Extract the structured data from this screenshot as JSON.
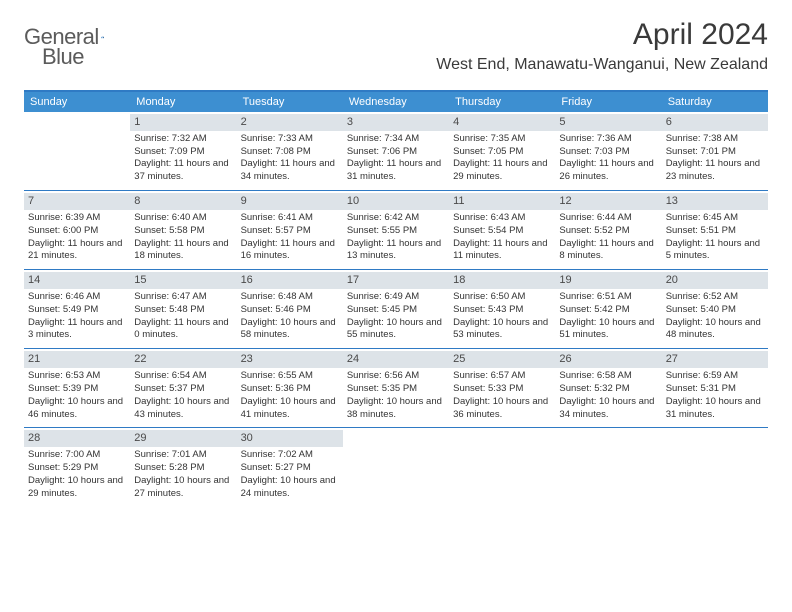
{
  "brand": {
    "name_gray": "General",
    "name_blue": "Blue"
  },
  "title": "April 2024",
  "location": "West End, Manawatu-Wanganui, New Zealand",
  "colors": {
    "accent": "#2f7ac4",
    "header_bg": "#3d8fd1",
    "daynum_bg": "#dde3e8",
    "text": "#333333",
    "title_text": "#3a3a3a",
    "logo_gray": "#5b5b5b"
  },
  "typography": {
    "title_fontsize_pt": 22,
    "location_fontsize_pt": 12,
    "header_fontsize_pt": 8,
    "body_fontsize_pt": 7,
    "daynum_fontsize_pt": 8
  },
  "day_names": [
    "Sunday",
    "Monday",
    "Tuesday",
    "Wednesday",
    "Thursday",
    "Friday",
    "Saturday"
  ],
  "weeks": [
    [
      {
        "n": "",
        "sr": "",
        "ss": "",
        "dl": ""
      },
      {
        "n": "1",
        "sr": "Sunrise: 7:32 AM",
        "ss": "Sunset: 7:09 PM",
        "dl": "Daylight: 11 hours and 37 minutes."
      },
      {
        "n": "2",
        "sr": "Sunrise: 7:33 AM",
        "ss": "Sunset: 7:08 PM",
        "dl": "Daylight: 11 hours and 34 minutes."
      },
      {
        "n": "3",
        "sr": "Sunrise: 7:34 AM",
        "ss": "Sunset: 7:06 PM",
        "dl": "Daylight: 11 hours and 31 minutes."
      },
      {
        "n": "4",
        "sr": "Sunrise: 7:35 AM",
        "ss": "Sunset: 7:05 PM",
        "dl": "Daylight: 11 hours and 29 minutes."
      },
      {
        "n": "5",
        "sr": "Sunrise: 7:36 AM",
        "ss": "Sunset: 7:03 PM",
        "dl": "Daylight: 11 hours and 26 minutes."
      },
      {
        "n": "6",
        "sr": "Sunrise: 7:38 AM",
        "ss": "Sunset: 7:01 PM",
        "dl": "Daylight: 11 hours and 23 minutes."
      }
    ],
    [
      {
        "n": "7",
        "sr": "Sunrise: 6:39 AM",
        "ss": "Sunset: 6:00 PM",
        "dl": "Daylight: 11 hours and 21 minutes."
      },
      {
        "n": "8",
        "sr": "Sunrise: 6:40 AM",
        "ss": "Sunset: 5:58 PM",
        "dl": "Daylight: 11 hours and 18 minutes."
      },
      {
        "n": "9",
        "sr": "Sunrise: 6:41 AM",
        "ss": "Sunset: 5:57 PM",
        "dl": "Daylight: 11 hours and 16 minutes."
      },
      {
        "n": "10",
        "sr": "Sunrise: 6:42 AM",
        "ss": "Sunset: 5:55 PM",
        "dl": "Daylight: 11 hours and 13 minutes."
      },
      {
        "n": "11",
        "sr": "Sunrise: 6:43 AM",
        "ss": "Sunset: 5:54 PM",
        "dl": "Daylight: 11 hours and 11 minutes."
      },
      {
        "n": "12",
        "sr": "Sunrise: 6:44 AM",
        "ss": "Sunset: 5:52 PM",
        "dl": "Daylight: 11 hours and 8 minutes."
      },
      {
        "n": "13",
        "sr": "Sunrise: 6:45 AM",
        "ss": "Sunset: 5:51 PM",
        "dl": "Daylight: 11 hours and 5 minutes."
      }
    ],
    [
      {
        "n": "14",
        "sr": "Sunrise: 6:46 AM",
        "ss": "Sunset: 5:49 PM",
        "dl": "Daylight: 11 hours and 3 minutes."
      },
      {
        "n": "15",
        "sr": "Sunrise: 6:47 AM",
        "ss": "Sunset: 5:48 PM",
        "dl": "Daylight: 11 hours and 0 minutes."
      },
      {
        "n": "16",
        "sr": "Sunrise: 6:48 AM",
        "ss": "Sunset: 5:46 PM",
        "dl": "Daylight: 10 hours and 58 minutes."
      },
      {
        "n": "17",
        "sr": "Sunrise: 6:49 AM",
        "ss": "Sunset: 5:45 PM",
        "dl": "Daylight: 10 hours and 55 minutes."
      },
      {
        "n": "18",
        "sr": "Sunrise: 6:50 AM",
        "ss": "Sunset: 5:43 PM",
        "dl": "Daylight: 10 hours and 53 minutes."
      },
      {
        "n": "19",
        "sr": "Sunrise: 6:51 AM",
        "ss": "Sunset: 5:42 PM",
        "dl": "Daylight: 10 hours and 51 minutes."
      },
      {
        "n": "20",
        "sr": "Sunrise: 6:52 AM",
        "ss": "Sunset: 5:40 PM",
        "dl": "Daylight: 10 hours and 48 minutes."
      }
    ],
    [
      {
        "n": "21",
        "sr": "Sunrise: 6:53 AM",
        "ss": "Sunset: 5:39 PM",
        "dl": "Daylight: 10 hours and 46 minutes."
      },
      {
        "n": "22",
        "sr": "Sunrise: 6:54 AM",
        "ss": "Sunset: 5:37 PM",
        "dl": "Daylight: 10 hours and 43 minutes."
      },
      {
        "n": "23",
        "sr": "Sunrise: 6:55 AM",
        "ss": "Sunset: 5:36 PM",
        "dl": "Daylight: 10 hours and 41 minutes."
      },
      {
        "n": "24",
        "sr": "Sunrise: 6:56 AM",
        "ss": "Sunset: 5:35 PM",
        "dl": "Daylight: 10 hours and 38 minutes."
      },
      {
        "n": "25",
        "sr": "Sunrise: 6:57 AM",
        "ss": "Sunset: 5:33 PM",
        "dl": "Daylight: 10 hours and 36 minutes."
      },
      {
        "n": "26",
        "sr": "Sunrise: 6:58 AM",
        "ss": "Sunset: 5:32 PM",
        "dl": "Daylight: 10 hours and 34 minutes."
      },
      {
        "n": "27",
        "sr": "Sunrise: 6:59 AM",
        "ss": "Sunset: 5:31 PM",
        "dl": "Daylight: 10 hours and 31 minutes."
      }
    ],
    [
      {
        "n": "28",
        "sr": "Sunrise: 7:00 AM",
        "ss": "Sunset: 5:29 PM",
        "dl": "Daylight: 10 hours and 29 minutes."
      },
      {
        "n": "29",
        "sr": "Sunrise: 7:01 AM",
        "ss": "Sunset: 5:28 PM",
        "dl": "Daylight: 10 hours and 27 minutes."
      },
      {
        "n": "30",
        "sr": "Sunrise: 7:02 AM",
        "ss": "Sunset: 5:27 PM",
        "dl": "Daylight: 10 hours and 24 minutes."
      },
      {
        "n": "",
        "sr": "",
        "ss": "",
        "dl": ""
      },
      {
        "n": "",
        "sr": "",
        "ss": "",
        "dl": ""
      },
      {
        "n": "",
        "sr": "",
        "ss": "",
        "dl": ""
      },
      {
        "n": "",
        "sr": "",
        "ss": "",
        "dl": ""
      }
    ]
  ]
}
